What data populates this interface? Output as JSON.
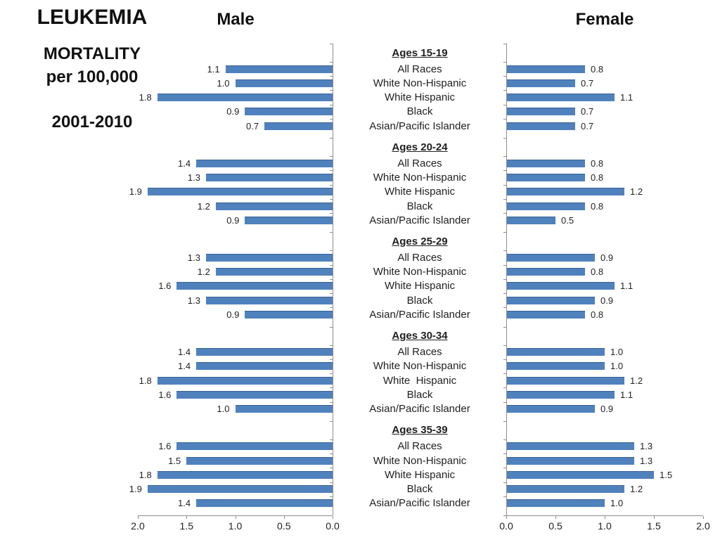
{
  "page": {
    "title": "LEUKEMIA",
    "subtitle_line1": "MORTALITY",
    "subtitle_line2": "per 100,000",
    "period": "2001-2010"
  },
  "chart_data": {
    "type": "bar",
    "orientation": "horizontal",
    "title": "LEUKEMIA MORTALITY per 100,000 2001-2010",
    "xlim": [
      0,
      2.0
    ],
    "bar_color": "#4f81bd",
    "axis_color": "#8e8e8e",
    "value_decimals": 1,
    "panels": [
      {
        "name": "Male",
        "side": "left",
        "direction": "right-to-left",
        "axis_ticks": [
          "2.0",
          "1.5",
          "1.0",
          "0.5",
          "0.0"
        ]
      },
      {
        "name": "Female",
        "side": "right",
        "direction": "left-to-right",
        "axis_ticks": [
          "0.0",
          "0.5",
          "1.0",
          "1.5",
          "2.0"
        ]
      }
    ],
    "groups": [
      {
        "label": "Ages 15-19",
        "categories": [
          "All Races",
          "White Non-Hispanic",
          "White Hispanic",
          "Black",
          "Asian/Pacific Islander"
        ],
        "male": [
          1.1,
          1.0,
          1.8,
          0.9,
          0.7
        ],
        "female": [
          0.8,
          0.7,
          1.1,
          0.7,
          0.7
        ]
      },
      {
        "label": "Ages 20-24",
        "categories": [
          "All Races",
          "White Non-Hispanic",
          "White Hispanic",
          "Black",
          "Asian/Pacific Islander"
        ],
        "male": [
          1.4,
          1.3,
          1.9,
          1.2,
          0.9
        ],
        "female": [
          0.8,
          0.8,
          1.2,
          0.8,
          0.5
        ]
      },
      {
        "label": "Ages 25-29",
        "categories": [
          "All Races",
          "White Non-Hispanic",
          "White Hispanic",
          "Black",
          "Asian/Pacific Islander"
        ],
        "male": [
          1.3,
          1.2,
          1.6,
          1.3,
          0.9
        ],
        "female": [
          0.9,
          0.8,
          1.1,
          0.9,
          0.8
        ]
      },
      {
        "label": "Ages 30-34",
        "categories": [
          "All Races",
          "White Non-Hispanic",
          "White  Hispanic",
          "Black",
          "Asian/Pacific Islander"
        ],
        "male": [
          1.4,
          1.4,
          1.8,
          1.6,
          1.0
        ],
        "female": [
          1.0,
          1.0,
          1.2,
          1.1,
          0.9
        ]
      },
      {
        "label": "Ages 35-39",
        "categories": [
          "All Races",
          "White Non-Hispanic",
          "White Hispanic",
          "Black",
          "Asian/Pacific Islander"
        ],
        "male": [
          1.6,
          1.5,
          1.8,
          1.9,
          1.4
        ],
        "female": [
          1.3,
          1.3,
          1.5,
          1.2,
          1.0
        ]
      }
    ]
  }
}
